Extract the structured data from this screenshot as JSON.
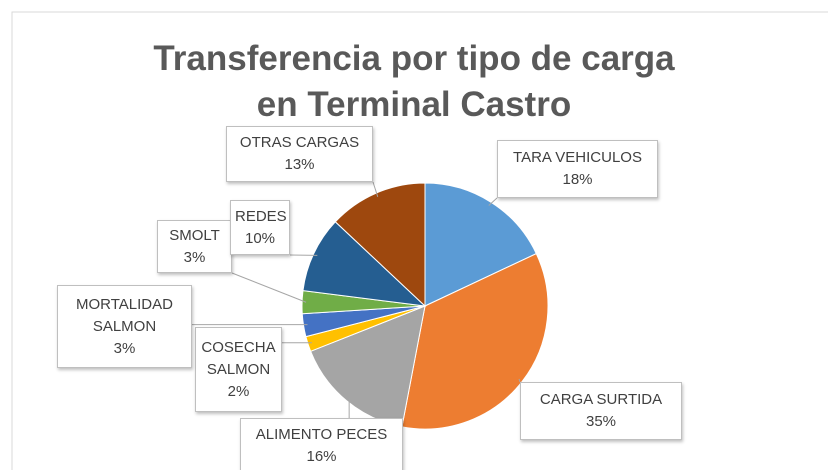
{
  "chart_data": {
    "type": "pie",
    "title": "Transferencia por tipo de carga en Terminal Castro",
    "categories": [
      "TARA VEHICULOS",
      "CARGA SURTIDA",
      "ALIMENTO PECES",
      "COSECHA SALMON",
      "MORTALIDAD SALMON",
      "SMOLT",
      "REDES",
      "OTRAS CARGAS"
    ],
    "values": [
      18,
      35,
      16,
      2,
      3,
      3,
      10,
      13
    ],
    "value_labels": [
      "18%",
      "35%",
      "16%",
      "2%",
      "3%",
      "3%",
      "10%",
      "13%"
    ],
    "colors": [
      "#5b9bd5",
      "#ed7d31",
      "#a5a5a5",
      "#ffc000",
      "#4472c4",
      "#70ad47",
      "#255e91",
      "#9e480e"
    ]
  }
}
